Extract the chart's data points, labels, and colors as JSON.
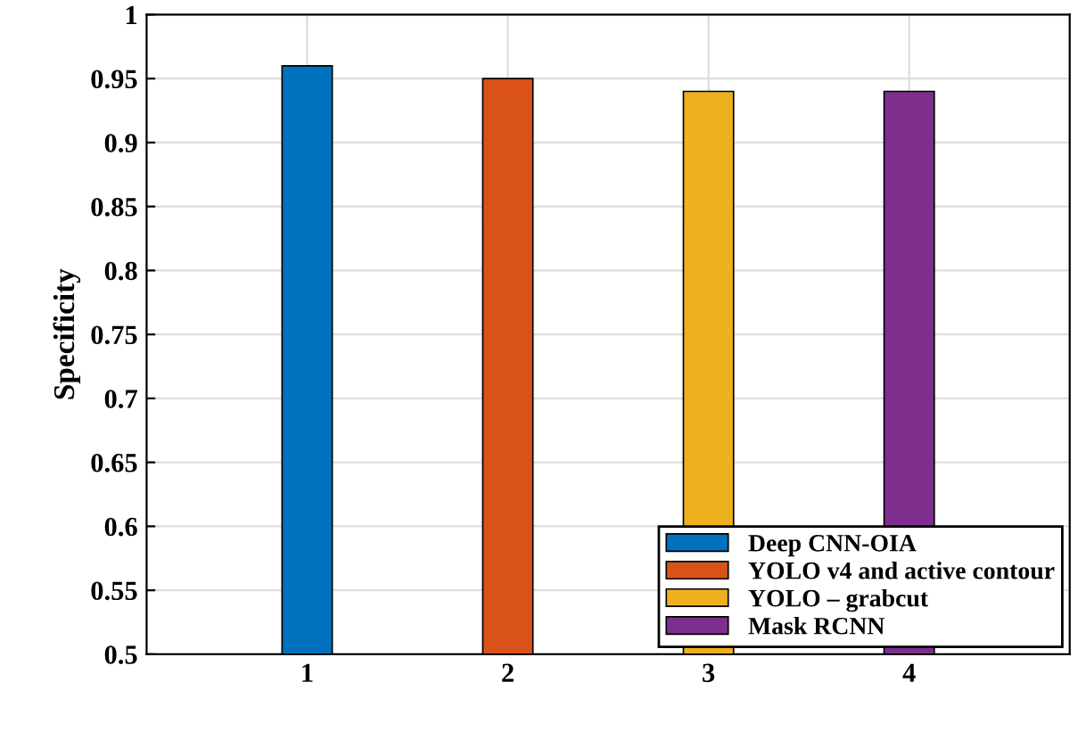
{
  "chart_data": {
    "type": "bar",
    "ylabel": "Specificity",
    "categories": [
      "1",
      "2",
      "3",
      "4"
    ],
    "series": [
      {
        "name": "Deep CNN-OIA",
        "color": "#0072bd",
        "values": [
          0.96,
          null,
          null,
          null
        ]
      },
      {
        "name": "YOLO v4 and active contour",
        "color": "#d95319",
        "values": [
          null,
          0.95,
          null,
          null
        ]
      },
      {
        "name": "YOLO – grabcut",
        "color": "#edb120",
        "values": [
          null,
          null,
          0.94,
          null
        ]
      },
      {
        "name": "Mask RCNN",
        "color": "#7e2f8e",
        "values": [
          null,
          null,
          null,
          0.94
        ]
      }
    ],
    "ylim": [
      0.5,
      1
    ],
    "yticks": [
      0.5,
      0.55,
      0.6,
      0.65,
      0.7,
      0.75,
      0.8,
      0.85,
      0.9,
      0.95,
      1
    ],
    "grid": true,
    "legend": "bottom right"
  }
}
